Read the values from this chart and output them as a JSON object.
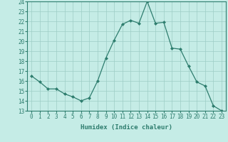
{
  "x": [
    0,
    1,
    2,
    3,
    4,
    5,
    6,
    7,
    8,
    9,
    10,
    11,
    12,
    13,
    14,
    15,
    16,
    17,
    18,
    19,
    20,
    21,
    22,
    23
  ],
  "y": [
    16.5,
    15.9,
    15.2,
    15.2,
    14.7,
    14.4,
    14.0,
    14.3,
    16.0,
    18.3,
    20.1,
    21.7,
    22.1,
    21.8,
    24.0,
    21.8,
    21.9,
    19.3,
    19.2,
    17.5,
    15.9,
    15.5,
    13.5,
    13.0
  ],
  "xlabel": "Humidex (Indice chaleur)",
  "xlim": [
    -0.5,
    23.5
  ],
  "ylim": [
    13,
    24
  ],
  "yticks": [
    13,
    14,
    15,
    16,
    17,
    18,
    19,
    20,
    21,
    22,
    23,
    24
  ],
  "xticks": [
    0,
    1,
    2,
    3,
    4,
    5,
    6,
    7,
    8,
    9,
    10,
    11,
    12,
    13,
    14,
    15,
    16,
    17,
    18,
    19,
    20,
    21,
    22,
    23
  ],
  "line_color": "#2e7d6e",
  "marker": "D",
  "marker_size": 2.0,
  "bg_color": "#c5ece6",
  "grid_color": "#9dcdc6",
  "label_fontsize": 6.5,
  "tick_fontsize": 5.5
}
